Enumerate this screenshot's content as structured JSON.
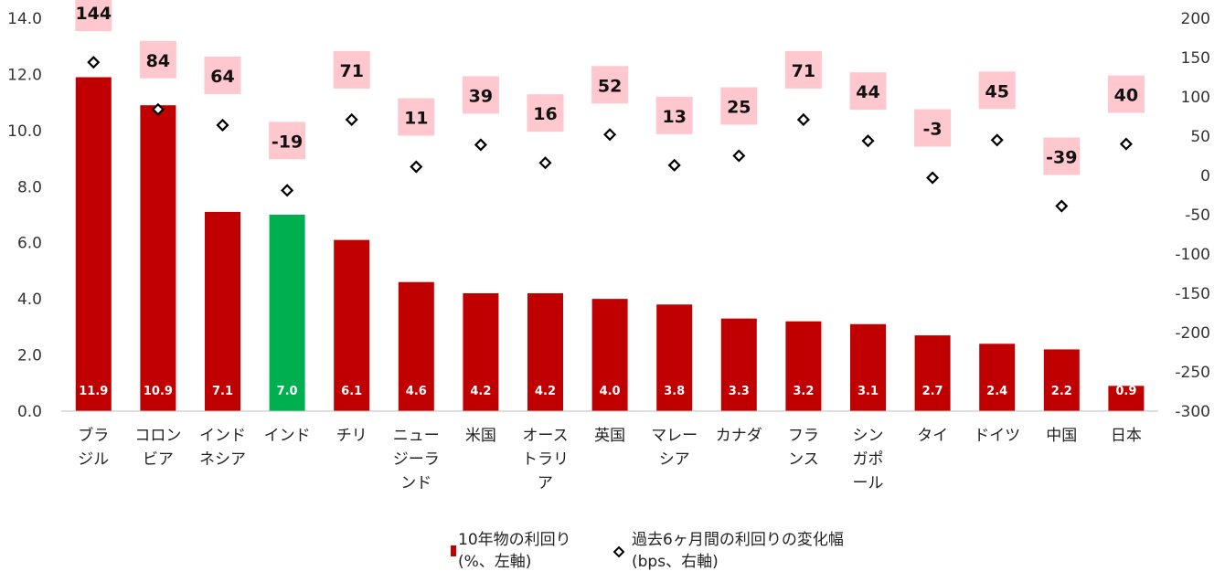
{
  "chart_data": {
    "type": "bar",
    "categories": [
      "ブラジル",
      "コロンビア",
      "インドネシア",
      "インド",
      "チリ",
      "ニュージーランド",
      "米国",
      "オーストラリア",
      "英国",
      "マレーシア",
      "カナダ",
      "フランス",
      "シンガポール",
      "タイ",
      "ドイツ",
      "中国",
      "日本"
    ],
    "category_lines": [
      [
        "ブラ",
        "ジル"
      ],
      [
        "コロン",
        "ビア"
      ],
      [
        "インド",
        "ネシア"
      ],
      [
        "インド"
      ],
      [
        "チリ"
      ],
      [
        "ニュー",
        "ジーラ",
        "ンド"
      ],
      [
        "米国"
      ],
      [
        "オース",
        "トラリ",
        "ア"
      ],
      [
        "英国"
      ],
      [
        "マレー",
        "シア"
      ],
      [
        "カナダ"
      ],
      [
        "フラ",
        "ンス"
      ],
      [
        "シン",
        "ガポ",
        "ール"
      ],
      [
        "タイ"
      ],
      [
        "ドイツ"
      ],
      [
        "中国"
      ],
      [
        "日本"
      ]
    ],
    "series": [
      {
        "name": "10年物の利回り（%、左軸）",
        "legend_lines": [
          "10年物の利回り",
          "(%、左軸)"
        ],
        "type": "bar",
        "axis": "left",
        "values": [
          11.9,
          10.9,
          7.1,
          7.0,
          6.1,
          4.6,
          4.2,
          4.2,
          4.0,
          3.8,
          3.3,
          3.2,
          3.1,
          2.7,
          2.4,
          2.2,
          0.9
        ],
        "labels": [
          "11.9",
          "10.9",
          "7.1",
          "7.0",
          "6.1",
          "4.6",
          "4.2",
          "4.2",
          "4.0",
          "3.8",
          "3.3",
          "3.2",
          "3.1",
          "2.7",
          "2.4",
          "2.2",
          "0.9"
        ],
        "color": "#c00000",
        "highlight_index": 3,
        "highlight_color": "#00b050"
      },
      {
        "name": "過去6ヶ月間の利回りの変化幅（bps、右軸）",
        "legend_lines": [
          "過去6ヶ月間の利回りの変化幅",
          "(bps、右軸)"
        ],
        "type": "scatter",
        "marker": "diamond",
        "axis": "right",
        "values": [
          144,
          84,
          64,
          -19,
          71,
          11,
          39,
          16,
          52,
          13,
          25,
          71,
          44,
          -3,
          45,
          -39,
          40
        ],
        "labels": [
          "144",
          "84",
          "64",
          "-19",
          "71",
          "11",
          "39",
          "16",
          "52",
          "13",
          "25",
          "71",
          "44",
          "-3",
          "45",
          "-39",
          "40"
        ],
        "label_bg": "#ffc7ce"
      }
    ],
    "y_left": {
      "ylim": [
        0,
        14
      ],
      "ticks": [
        "0.0",
        "2.0",
        "4.0",
        "6.0",
        "8.0",
        "10.0",
        "12.0",
        "14.0"
      ]
    },
    "y_right": {
      "ylim": [
        -300,
        200
      ],
      "ticks": [
        "-300",
        "-250",
        "-200",
        "-150",
        "-100",
        "-50",
        "0",
        "50",
        "100",
        "150",
        "200"
      ]
    },
    "title": "",
    "xlabel": "",
    "grid": false,
    "legend_position": "bottom-center"
  }
}
